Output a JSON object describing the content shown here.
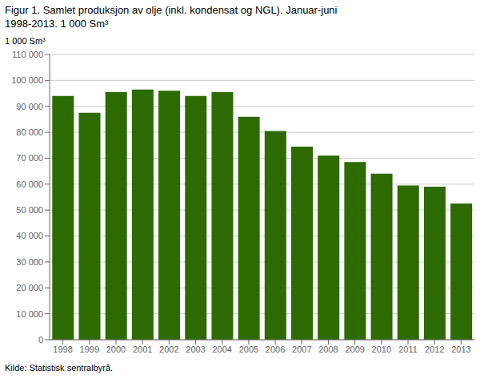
{
  "chart_data": {
    "type": "bar",
    "title": "Figur 1. Samlet produksjon av olje (inkl. kondensat og NGL). Januar-juni",
    "subtitle": "1998-2013. 1 000 Sm³",
    "y_label": "1 000 Sm³",
    "annotations": [
      "Kilde: Statistisk sentralbyrå."
    ],
    "categories": [
      "1998",
      "1999",
      "2000",
      "2001",
      "2002",
      "2003",
      "2004",
      "2005",
      "2006",
      "2007",
      "2008",
      "2009",
      "2010",
      "2011",
      "2012",
      "2013"
    ],
    "values": [
      94000,
      87500,
      95500,
      96500,
      96000,
      94000,
      95500,
      86000,
      80500,
      74500,
      71000,
      68500,
      64000,
      59500,
      59000,
      52500
    ],
    "color": "#2d6a00",
    "ylim": [
      0,
      110000
    ],
    "yticks": [
      0,
      {
        "value": 10000,
        "label": "10 000"
      },
      {
        "value": 20000,
        "label": "20 000"
      },
      {
        "value": 30000,
        "label": "30 000"
      },
      {
        "value": 40000,
        "label": "40 000"
      },
      {
        "value": 50000,
        "label": "50 000"
      },
      {
        "value": 60000,
        "label": "60 000"
      },
      {
        "value": 70000,
        "label": "70 000"
      },
      {
        "value": 80000,
        "label": "80 000"
      },
      {
        "value": 90000,
        "label": "90 000"
      },
      {
        "value": 100000,
        "label": "100 000"
      },
      {
        "value": 110000,
        "label": "110 000"
      }
    ],
    "grid": true
  }
}
